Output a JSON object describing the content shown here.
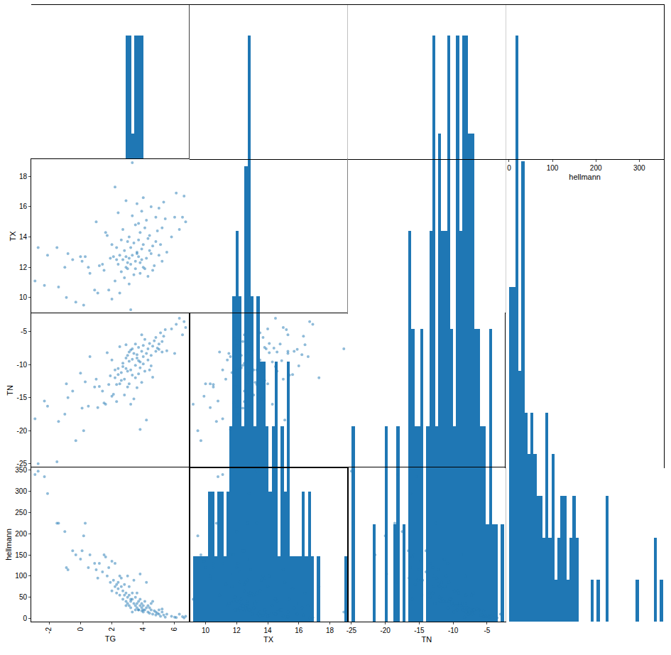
{
  "chart_data": {
    "type": "scatter_matrix",
    "color": "#1f77b4",
    "grid": false,
    "variables": [
      {
        "name": "TG",
        "xlim": [
          -3.14,
          6.94
        ],
        "ylim": [
          -3.14,
          6.94
        ],
        "xticks": [
          -2,
          0,
          2,
          4,
          6
        ],
        "yticks": [
          -2,
          0,
          2,
          4,
          6
        ],
        "values": [
          -2.9,
          -2.7,
          -2.3,
          -2.1,
          -1.5,
          -1.4,
          -1.0,
          -0.9,
          -0.5,
          -0.3,
          0.0,
          0.1,
          0.2,
          0.3,
          0.5,
          0.9,
          1.0,
          1.1,
          1.2,
          1.5,
          1.6,
          1.7,
          1.8,
          1.9,
          2.0,
          2.1,
          2.2,
          2.2,
          2.3,
          2.3,
          2.4,
          2.4,
          2.5,
          2.5,
          2.6,
          2.6,
          2.7,
          2.7,
          2.8,
          2.8,
          2.9,
          2.9,
          3.0,
          3.0,
          3.0,
          3.1,
          3.1,
          3.1,
          3.2,
          3.2,
          3.3,
          3.3,
          3.4,
          3.4,
          3.5,
          3.5,
          3.5,
          3.6,
          3.6,
          3.7,
          3.7,
          3.8,
          3.8,
          3.8,
          3.9,
          3.9,
          4.0,
          4.0,
          4.0,
          4.1,
          4.1,
          4.2,
          4.2,
          4.3,
          4.3,
          4.4,
          4.5,
          4.5,
          4.6,
          4.7,
          4.8,
          4.8,
          4.9,
          5.0,
          5.0,
          5.1,
          5.2,
          5.2,
          5.3,
          5.4,
          5.5,
          5.8,
          6.0,
          6.1,
          6.3,
          6.5,
          6.6,
          6.7,
          3.3,
          2.0,
          3.6,
          1.4,
          4.4,
          2.9,
          3.9,
          3.2,
          0.6,
          -0.8,
          3.7,
          4.6
        ]
      },
      {
        "name": "TX",
        "xlim": [
          8.96,
          19.14
        ],
        "ylim": [
          8.96,
          19.14
        ],
        "xticks": [
          10,
          12,
          14,
          16,
          18
        ],
        "yticks": [
          10,
          12,
          14,
          16,
          18
        ],
        "values": [
          11.1,
          13.3,
          10.8,
          12.8,
          13.3,
          10.7,
          12.0,
          10.0,
          12.5,
          9.7,
          12.7,
          12.4,
          9.5,
          12.7,
          12.0,
          10.5,
          15.0,
          10.3,
          12.1,
          11.8,
          14.3,
          14.1,
          10.5,
          12.6,
          13.5,
          12.7,
          17.3,
          11.1,
          12.5,
          13.3,
          12.2,
          15.6,
          10.3,
          12.8,
          11.7,
          13.8,
          12.5,
          14.5,
          11.3,
          13.1,
          12.0,
          16.4,
          12.3,
          13.7,
          11.9,
          12.6,
          14.0,
          10.9,
          13.3,
          12.2,
          15.4,
          12.8,
          11.5,
          13.6,
          12.4,
          14.8,
          11.9,
          13.0,
          16.2,
          12.7,
          13.8,
          11.6,
          14.3,
          12.3,
          15.7,
          13.2,
          12.0,
          16.6,
          13.5,
          11.9,
          14.6,
          12.6,
          15.1,
          13.9,
          11.4,
          14.1,
          12.9,
          16.0,
          13.4,
          12.1,
          15.3,
          13.7,
          14.4,
          12.8,
          15.9,
          13.5,
          14.6,
          12.4,
          16.3,
          15.2,
          13.0,
          14.0,
          15.3,
          16.9,
          14.5,
          15.3,
          16.7,
          15.0,
          18.9,
          9.9,
          12.9,
          12.2,
          13.1,
          12.7,
          12.5,
          9.2,
          11.6,
          12.9,
          14.9,
          11.8
        ]
      },
      {
        "name": "TN",
        "xlim": [
          -25.56,
          -2.24
        ],
        "ylim": [
          -25.56,
          -2.24
        ],
        "xticks": [
          -25,
          -20,
          -15,
          -10,
          -5
        ],
        "yticks": [
          -25,
          -20,
          -15,
          -10,
          -5
        ],
        "values": [
          -18.2,
          -25.0,
          -15.5,
          -16.3,
          -24.7,
          -18.6,
          -17.5,
          -12.9,
          -14.0,
          -21.5,
          -11.3,
          -16.6,
          -20.0,
          -12.6,
          -16.3,
          -13.4,
          -12.2,
          -16.5,
          -13.3,
          -15.8,
          -16.0,
          -8.2,
          -13.0,
          -11.7,
          -9.3,
          -14.5,
          -12.0,
          -10.8,
          -15.6,
          -13.0,
          -10.6,
          -11.5,
          -12.9,
          -7.3,
          -11.2,
          -12.4,
          -9.8,
          -10.3,
          -12.2,
          -14.6,
          -10.6,
          -7.0,
          -8.6,
          -11.0,
          -13.4,
          -9.5,
          -12.9,
          -8.1,
          -10.8,
          -7.8,
          -11.6,
          -9.2,
          -8.3,
          -15.2,
          -10.1,
          -6.9,
          -12.0,
          -9.0,
          -8.5,
          -11.4,
          -7.4,
          -19.8,
          -9.6,
          -10.5,
          -8.0,
          -12.7,
          -7.1,
          -8.8,
          -9.9,
          -6.2,
          -11.0,
          -8.3,
          -18.4,
          -7.6,
          -9.3,
          -6.8,
          -8.6,
          -10.2,
          -7.2,
          -6.4,
          -8.0,
          -5.9,
          -7.5,
          -6.9,
          -7.7,
          -5.2,
          -8.1,
          -6.5,
          -5.7,
          -4.7,
          -7.9,
          -4.6,
          -8.3,
          -3.9,
          -3.0,
          -5.5,
          -3.5,
          -4.4,
          -7.6,
          -14.8,
          -13.5,
          -14.0,
          -10.8,
          -9.0,
          -5.5,
          -16.0,
          -8.8,
          -15.0,
          -9.4,
          -11.9
        ]
      },
      {
        "name": "hellmann",
        "xlim": [
          -7.7,
          356.7
        ],
        "ylim": [
          -7.7,
          356.7
        ],
        "xticks": [
          0,
          100,
          200,
          300
        ],
        "yticks": [
          0,
          50,
          100,
          150,
          200,
          250,
          300,
          350
        ],
        "values": [
          340,
          348,
          335,
          295,
          225,
          225,
          205,
          120,
          160,
          150,
          140,
          160,
          195,
          225,
          120,
          130,
          115,
          95,
          130,
          150,
          145,
          100,
          120,
          85,
          65,
          90,
          75,
          130,
          80,
          60,
          85,
          70,
          100,
          55,
          75,
          95,
          65,
          45,
          80,
          55,
          40,
          60,
          35,
          100,
          50,
          30,
          75,
          55,
          40,
          25,
          45,
          60,
          35,
          90,
          30,
          20,
          50,
          35,
          25,
          40,
          20,
          105,
          30,
          45,
          25,
          35,
          20,
          30,
          15,
          20,
          40,
          25,
          85,
          15,
          30,
          12,
          20,
          35,
          10,
          18,
          15,
          8,
          12,
          20,
          10,
          5,
          15,
          22,
          8,
          3,
          10,
          5,
          3,
          2,
          10,
          4,
          1,
          5,
          15,
          135,
          60,
          110,
          25,
          30,
          18,
          45,
          150,
          115,
          20,
          40
        ]
      }
    ]
  }
}
